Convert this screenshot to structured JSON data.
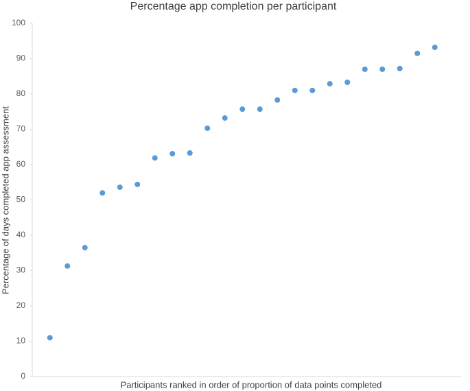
{
  "chart_data": {
    "type": "scatter",
    "title": "Percentage app completion per participant",
    "x_label": "Participants ranked in order of proportion of data points completed",
    "y_label": "Percentage of days completed app assessment",
    "categories": [
      null,
      null,
      null,
      null,
      null,
      null,
      null,
      null,
      null,
      null,
      null,
      null,
      null,
      null,
      null,
      null,
      null,
      null,
      null,
      null,
      null,
      null,
      null
    ],
    "values": [
      11,
      31.3,
      36.5,
      52,
      53.6,
      54.4,
      61.9,
      63.1,
      63.3,
      70.3,
      73.2,
      75.7,
      75.7,
      78.3,
      81,
      81,
      82.9,
      83.3,
      87,
      87,
      87.2,
      91.5,
      93.2
    ],
    "color": "#5b9bd5",
    "ylim": [
      0,
      100
    ],
    "yticks": [
      0,
      10,
      20,
      30,
      40,
      50,
      60,
      70,
      80,
      90,
      100
    ],
    "grid": false
  }
}
